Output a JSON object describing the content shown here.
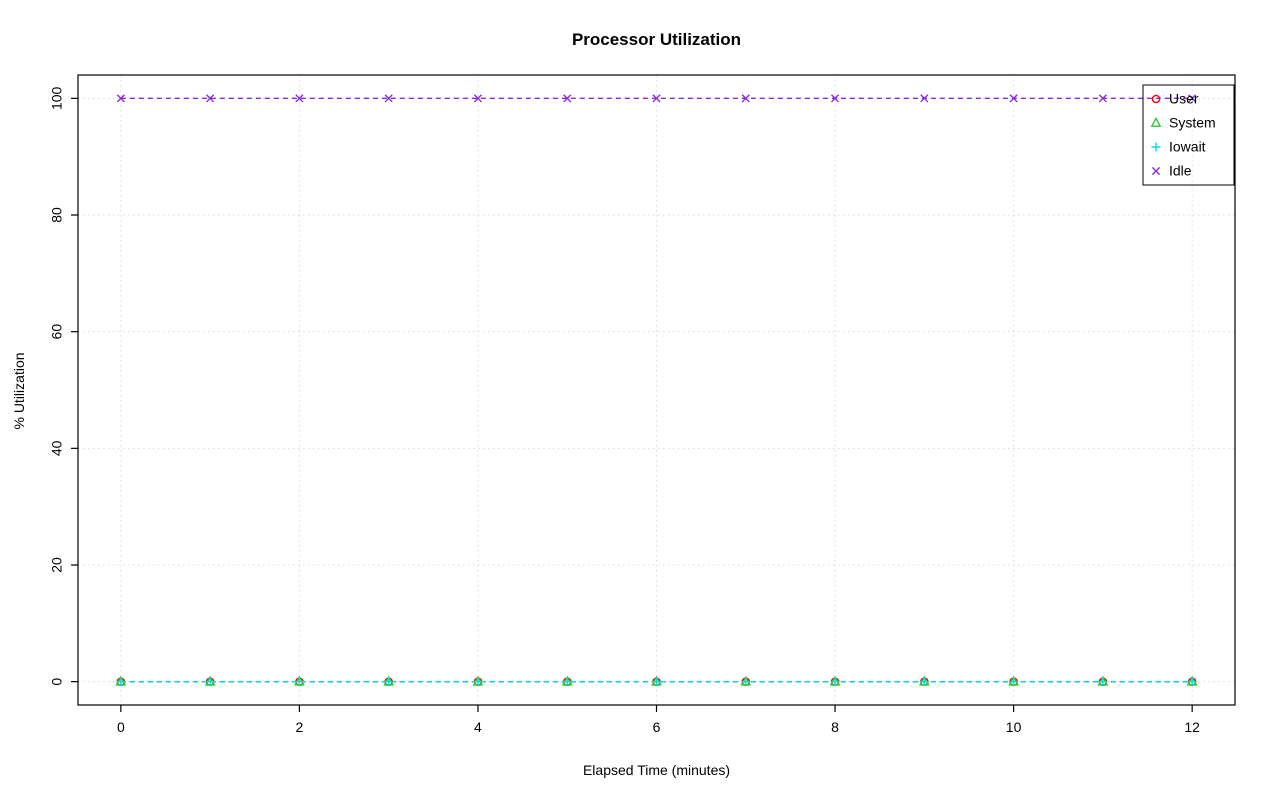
{
  "chart_data": {
    "type": "line",
    "title": "Processor Utilization",
    "xlabel": "Elapsed Time (minutes)",
    "ylabel": "% Utilization",
    "x": [
      0,
      1,
      2,
      3,
      4,
      5,
      6,
      7,
      8,
      9,
      10,
      11,
      12
    ],
    "series": [
      {
        "name": "User",
        "color": "#ff0000",
        "marker": "circle",
        "values": [
          0,
          0,
          0,
          0,
          0,
          0,
          0,
          0,
          0,
          0,
          0,
          0,
          0
        ]
      },
      {
        "name": "System",
        "color": "#2dc937",
        "marker": "triangle",
        "values": [
          0,
          0,
          0,
          0,
          0,
          0,
          0,
          0,
          0,
          0,
          0,
          0,
          0
        ]
      },
      {
        "name": "Iowait",
        "color": "#00dddd",
        "marker": "plus",
        "values": [
          0,
          0,
          0,
          0,
          0,
          0,
          0,
          0,
          0,
          0,
          0,
          0,
          0
        ]
      },
      {
        "name": "Idle",
        "color": "#8a2be2",
        "marker": "x",
        "values": [
          100,
          100,
          100,
          100,
          100,
          100,
          100,
          100,
          100,
          100,
          100,
          100,
          100
        ]
      }
    ],
    "xticks": [
      0,
      2,
      4,
      6,
      8,
      10,
      12
    ],
    "yticks": [
      0,
      20,
      40,
      60,
      80,
      100
    ],
    "xlim": [
      -0.48,
      12.48
    ],
    "ylim": [
      -4,
      104
    ],
    "grid": true,
    "grid_color": "#d9d9d9",
    "line_style": "dashed",
    "legend_position": "top-right",
    "axis_color": "#000000"
  }
}
